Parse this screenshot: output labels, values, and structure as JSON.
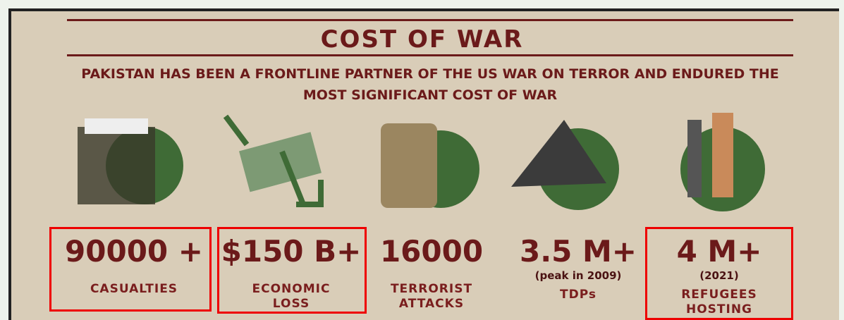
{
  "header": {
    "title": "COST OF WAR",
    "subtitle": "PAKISTAN HAS BEEN A FRONTLINE PARTNER OF THE US WAR ON TERROR AND ENDURED THE MOST SIGNIFICANT COST OF WAR"
  },
  "items": [
    {
      "value": "90000 +",
      "label": "CASUALTIES",
      "highlighted": true
    },
    {
      "value": "$150 B+",
      "label": "ECONOMIC LOSS",
      "highlighted": true
    },
    {
      "value": "16000",
      "label": "TERRORIST ATTACKS",
      "highlighted": false
    },
    {
      "value": "3.5 M+",
      "note": "(peak in 2009)",
      "label": "TDPs",
      "highlighted": false
    },
    {
      "value": "4 M+",
      "note": "(2021)",
      "label": "REFUGEES HOSTING",
      "highlighted": true
    }
  ]
}
